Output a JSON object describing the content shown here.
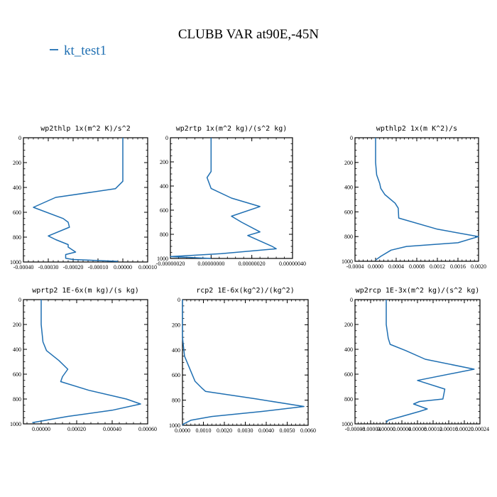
{
  "title": "CLUBB VAR at90E,-45N",
  "legend": {
    "label": "kt_test1",
    "color": "#1f6fb2"
  },
  "chart_data": [
    {
      "type": "line",
      "title": "wp2thlp  1x(m^2 K)/s^2",
      "xlim": [
        -0.0004,
        0.0001
      ],
      "ylim": [
        1000,
        0
      ],
      "xticks": [
        -0.0004,
        -0.0003,
        -0.0002,
        -0.0001,
        0,
        0.0001
      ],
      "xtick_labels": [
        "-0.00040",
        "-0.00030",
        "-0.00020",
        "-0.00010",
        "0.00000",
        "0.00010"
      ],
      "yticks": [
        0,
        200,
        400,
        600,
        800,
        1000
      ],
      "ytick_labels": [
        "0",
        "200",
        "400",
        "600",
        "800",
        "1000"
      ],
      "series": [
        {
          "x": [
            0,
            0,
            0,
            -1e-05,
            -3e-05,
            -0.00027,
            -0.00036,
            -0.00024,
            -0.00022,
            -0.000215,
            -0.0003,
            -0.00027,
            -0.00022,
            -0.00022,
            -0.00019,
            -0.00023,
            -0.00023,
            -0.0002,
            -2e-05
          ],
          "y": [
            0,
            200,
            350,
            370,
            410,
            480,
            560,
            650,
            680,
            720,
            790,
            820,
            860,
            880,
            920,
            940,
            970,
            980,
            995
          ]
        }
      ]
    },
    {
      "type": "line",
      "title": "wp2rtp  1x(m^2 kg)/(s^2 kg)",
      "xlim": [
        -2e-07,
        4e-07
      ],
      "ylim": [
        1000,
        0
      ],
      "xticks": [
        -2e-07,
        0,
        2e-07,
        4e-07
      ],
      "xtick_labels": [
        "-0.00000020",
        "0.00000000",
        "0.00000020",
        "0.00000040"
      ],
      "yticks": [
        0,
        200,
        400,
        600,
        800,
        1000
      ],
      "ytick_labels": [
        "0",
        "200",
        "400",
        "600",
        "800",
        "1000"
      ],
      "series": [
        {
          "x": [
            0,
            0,
            0,
            -2e-08,
            0,
            1e-07,
            2.4e-07,
            1e-07,
            1.5e-07,
            2.4e-07,
            1.8e-07,
            3e-07,
            3.2e-07,
            5e-08,
            -2e-07,
            0
          ],
          "y": [
            0,
            200,
            280,
            330,
            420,
            500,
            570,
            650,
            700,
            780,
            810,
            900,
            920,
            960,
            985,
            1000
          ]
        }
      ]
    },
    {
      "type": "line",
      "title": "wpthlp2  1x(m K^2)/s",
      "xlim": [
        -0.0004,
        0.002
      ],
      "ylim": [
        1000,
        0
      ],
      "xticks": [
        -0.0004,
        0,
        0.0004,
        0.0008,
        0.0012,
        0.0016,
        0.002
      ],
      "xtick_labels": [
        "-0.0004",
        "0.0000",
        "0.0004",
        "0.0008",
        "0.0012",
        "0.0016",
        "0.0020"
      ],
      "yticks": [
        0,
        200,
        400,
        600,
        800,
        1000
      ],
      "ytick_labels": [
        "0",
        "200",
        "400",
        "600",
        "800",
        "1000"
      ],
      "series": [
        {
          "x": [
            0,
            0,
            2e-05,
            8e-05,
            0.0001,
            0.00018,
            0.00038,
            0.00044,
            0.00045,
            0.0012,
            0.002,
            0.0016,
            0.0006,
            0.0003,
            0.0001,
            0
          ],
          "y": [
            0,
            200,
            300,
            370,
            410,
            460,
            530,
            570,
            650,
            740,
            800,
            850,
            880,
            910,
            960,
            990
          ]
        }
      ]
    },
    {
      "type": "line",
      "title": "wprtp2  1E-6x(m kg)/(s kg)",
      "xlim": [
        -0.0001,
        0.0006
      ],
      "ylim": [
        1000,
        0
      ],
      "xticks": [
        0,
        0.0002,
        0.0004,
        0.0006
      ],
      "xtick_labels": [
        "0.00000",
        "0.00020",
        "0.00040",
        "0.00060"
      ],
      "yticks": [
        0,
        200,
        400,
        600,
        800,
        1000
      ],
      "ytick_labels": [
        "0",
        "200",
        "400",
        "600",
        "800",
        "1000"
      ],
      "series": [
        {
          "x": [
            0,
            0,
            1e-05,
            3e-05,
            0.0001,
            0.00015,
            0.00012,
            0.00011,
            0.00027,
            0.00048,
            0.00056,
            0.0004,
            0.00015,
            3e-05,
            -5e-05
          ],
          "y": [
            0,
            200,
            340,
            410,
            490,
            560,
            620,
            660,
            730,
            800,
            840,
            890,
            940,
            970,
            990
          ]
        }
      ]
    },
    {
      "type": "line",
      "title": "rcp2  1E-6x(kg^2)/(kg^2)",
      "xlim": [
        0,
        0.006
      ],
      "ylim": [
        1000,
        0
      ],
      "xticks": [
        0,
        0.001,
        0.002,
        0.003,
        0.004,
        0.005,
        0.006
      ],
      "xtick_labels": [
        "0.0000",
        "0.0010",
        "0.0020",
        "0.0030",
        "0.0040",
        "0.0050",
        "0.0060"
      ],
      "yticks": [
        0,
        200,
        400,
        600,
        800,
        1000
      ],
      "ytick_labels": [
        "0",
        "200",
        "400",
        "600",
        "800",
        "1000"
      ],
      "series": [
        {
          "x": [
            0,
            0,
            0.0001,
            0.0004,
            0.0006,
            0.0009,
            0.0011,
            0.0035,
            0.0058,
            0.0038,
            0.0014,
            0.0004,
            5e-05,
            0
          ],
          "y": [
            0,
            300,
            450,
            570,
            650,
            700,
            730,
            790,
            850,
            890,
            930,
            960,
            990,
            1000
          ]
        }
      ]
    },
    {
      "type": "line",
      "title": "wp2rcp  1E-3x(m^2 kg)/(s^2 kg)",
      "xlim": [
        -8e-05,
        0.00024
      ],
      "ylim": [
        1000,
        0
      ],
      "xticks": [
        -8e-05,
        -4e-05,
        0,
        4e-05,
        8e-05,
        0.00012,
        0.00016,
        0.0002,
        0.00024
      ],
      "xtick_labels": [
        "-0.00008",
        "-0.00004",
        "0.00000",
        "0.00004",
        "0.00008",
        "0.00012",
        "0.00016",
        "0.00020",
        "0.00024"
      ],
      "yticks": [
        0,
        200,
        400,
        600,
        800,
        1000
      ],
      "ytick_labels": [
        "0",
        "200",
        "400",
        "600",
        "800",
        "1000"
      ],
      "series": [
        {
          "x": [
            0,
            0,
            5e-06,
            1e-05,
            5e-05,
            0.0001,
            0.000225,
            8e-05,
            0.00015,
            0.000145,
            8.5e-05,
            7e-05,
            0.000105,
            8.5e-05,
            4e-05,
            5e-06,
            0
          ],
          "y": [
            0,
            200,
            310,
            360,
            410,
            480,
            560,
            650,
            720,
            800,
            820,
            840,
            880,
            900,
            940,
            970,
            990
          ]
        }
      ]
    }
  ]
}
